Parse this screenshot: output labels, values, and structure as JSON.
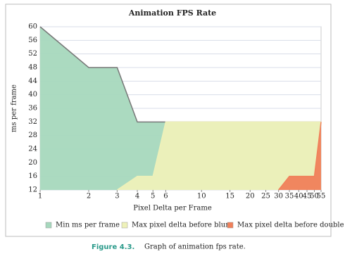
{
  "chart_data": {
    "type": "area",
    "title": "Animation FPS Rate",
    "x_label": "Pixel Delta per Frame",
    "y_label": "ms per frame",
    "xscale": "log",
    "xlim": [
      1,
      55
    ],
    "xticks": [
      1,
      2,
      3,
      4,
      5,
      6,
      10,
      15,
      20,
      25,
      30,
      35,
      40,
      45,
      50,
      55
    ],
    "ylim": [
      12,
      60
    ],
    "yticks": [
      12,
      16,
      20,
      24,
      28,
      32,
      36,
      40,
      44,
      48,
      52,
      56,
      60
    ],
    "grid": true,
    "legend": "bottom",
    "series": [
      {
        "name": "Min ms per frame",
        "color": "#a6d8bd",
        "x": [
          1,
          2,
          3,
          4,
          55
        ],
        "values": [
          60,
          48,
          48,
          32,
          32
        ]
      },
      {
        "name": "Max pixel delta before blur",
        "color": "#eef1b9",
        "x": [
          3,
          4,
          5,
          6,
          55
        ],
        "values": [
          12,
          16,
          16,
          32,
          32
        ]
      },
      {
        "name": "Max pixel delta before double",
        "color": "#f0805a",
        "x": [
          30,
          35,
          50,
          55
        ],
        "values": [
          12,
          16,
          16,
          32
        ]
      }
    ]
  },
  "caption": {
    "label": "Figure 4.3.",
    "text": "Graph of animation fps rate."
  }
}
